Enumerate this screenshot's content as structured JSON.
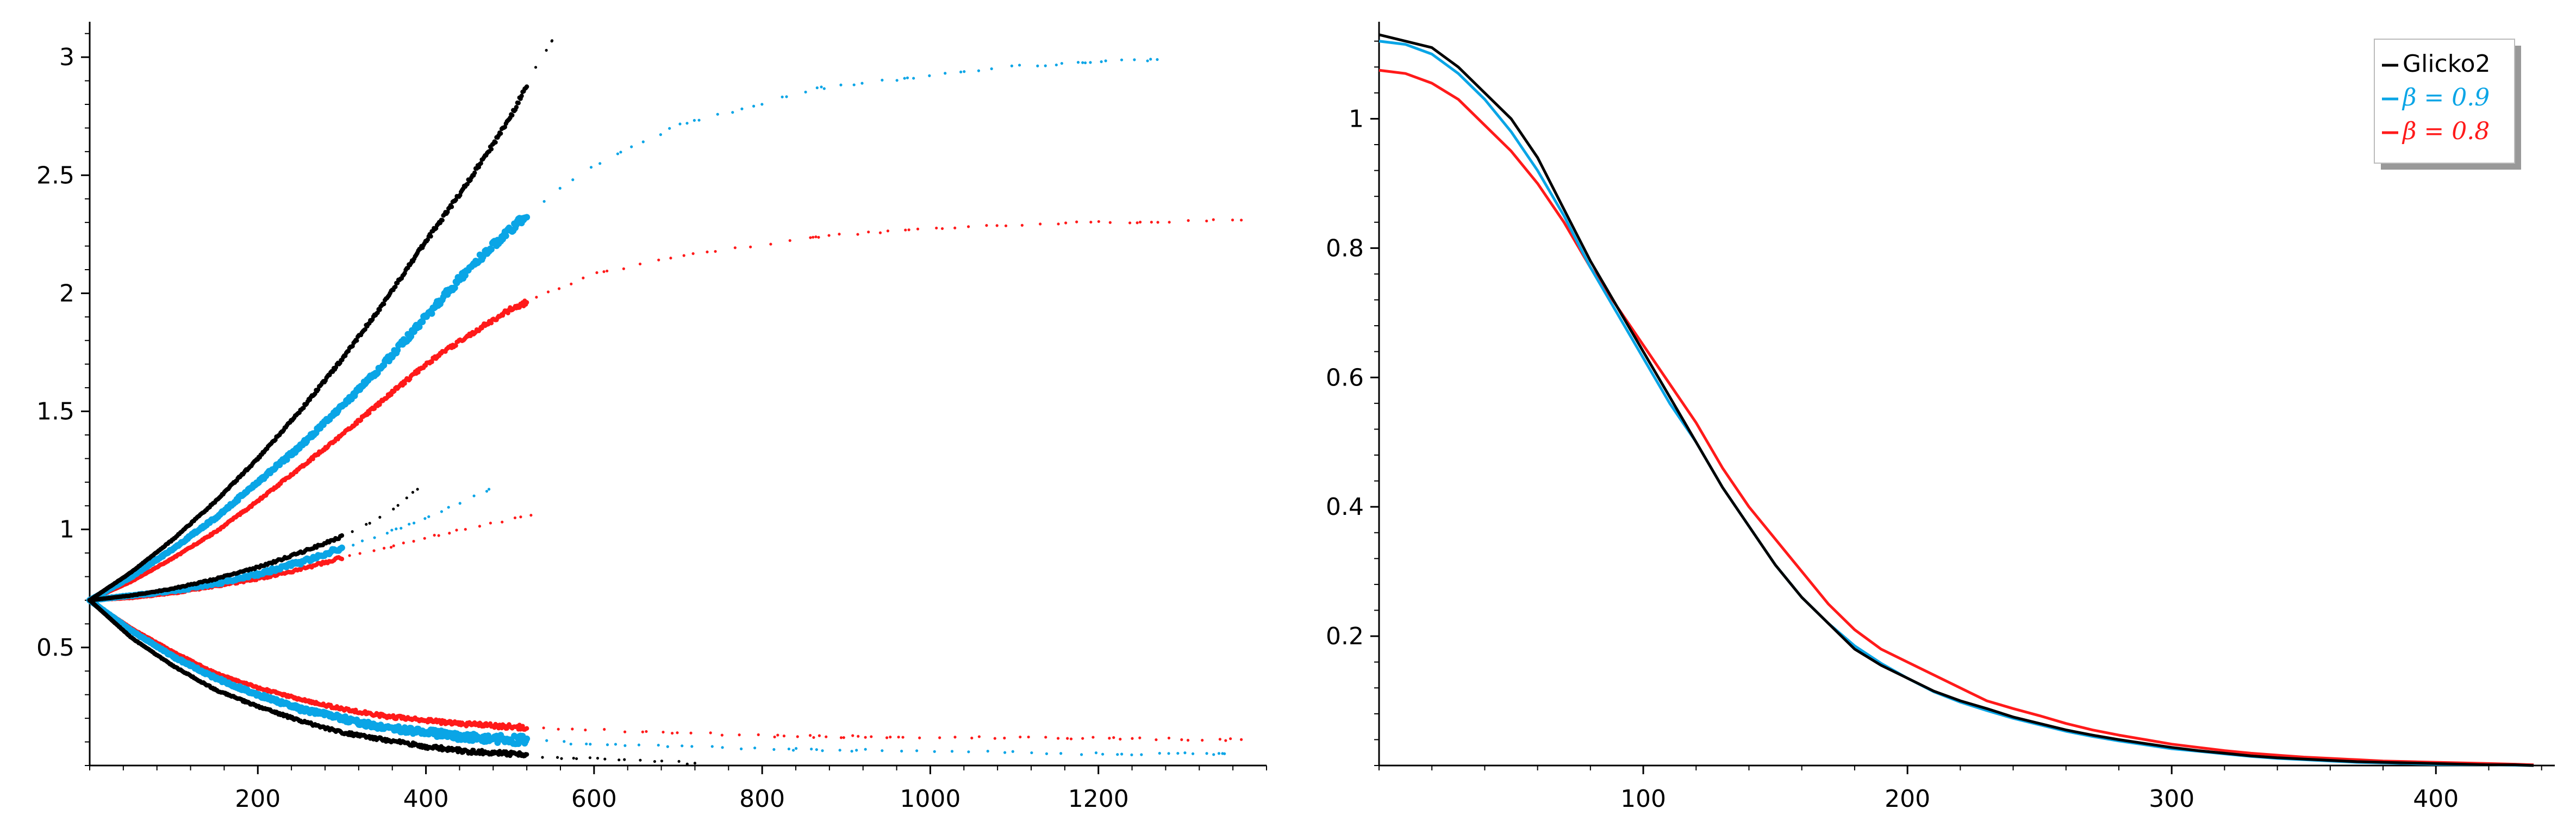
{
  "colors": {
    "black": "#000000",
    "blue": "#0aa5e6",
    "red": "#ff1a1a"
  },
  "chart_data": [
    {
      "type": "scatter",
      "xlim": [
        0,
        1400
      ],
      "ylim": [
        0.0,
        3.15
      ],
      "xticks": [
        200,
        400,
        600,
        800,
        1000,
        1200
      ],
      "xtick_labels": [
        "200",
        "400",
        "600",
        "800",
        "1000",
        "1200"
      ],
      "yticks": [
        0.5,
        1,
        1.5,
        2,
        2.5,
        3
      ],
      "ytick_labels": [
        "0.5",
        "1",
        "1.5",
        "2",
        "2.5",
        "3"
      ],
      "grid": false,
      "series": [
        {
          "color": "black",
          "group": "upper",
          "points": [
            [
              0,
              0.7
            ],
            [
              50,
              0.82
            ],
            [
              100,
              0.96
            ],
            [
              150,
              1.12
            ],
            [
              200,
              1.3
            ],
            [
              250,
              1.5
            ],
            [
              300,
              1.72
            ],
            [
              350,
              1.96
            ],
            [
              400,
              2.22
            ],
            [
              450,
              2.47
            ],
            [
              500,
              2.74
            ],
            [
              530,
              2.95
            ],
            [
              550,
              3.07
            ]
          ]
        },
        {
          "color": "blue",
          "group": "upper",
          "points": [
            [
              0,
              0.7
            ],
            [
              50,
              0.8
            ],
            [
              100,
              0.92
            ],
            [
              150,
              1.05
            ],
            [
              200,
              1.2
            ],
            [
              250,
              1.35
            ],
            [
              300,
              1.52
            ],
            [
              350,
              1.7
            ],
            [
              400,
              1.9
            ],
            [
              450,
              2.1
            ],
            [
              500,
              2.27
            ],
            [
              550,
              2.42
            ],
            [
              600,
              2.54
            ],
            [
              650,
              2.63
            ],
            [
              700,
              2.71
            ],
            [
              870,
              2.87
            ],
            [
              1000,
              2.92
            ],
            [
              1100,
              2.96
            ],
            [
              1200,
              2.98
            ],
            [
              1270,
              2.99
            ]
          ]
        },
        {
          "color": "red",
          "group": "upper",
          "points": [
            [
              0,
              0.7
            ],
            [
              50,
              0.78
            ],
            [
              100,
              0.88
            ],
            [
              150,
              0.99
            ],
            [
              200,
              1.12
            ],
            [
              250,
              1.26
            ],
            [
              300,
              1.4
            ],
            [
              350,
              1.55
            ],
            [
              400,
              1.7
            ],
            [
              450,
              1.82
            ],
            [
              500,
              1.93
            ],
            [
              550,
              2.01
            ],
            [
              600,
              2.08
            ],
            [
              650,
              2.12
            ],
            [
              690,
              2.15
            ],
            [
              890,
              2.25
            ],
            [
              1000,
              2.27
            ],
            [
              1100,
              2.29
            ],
            [
              1200,
              2.3
            ],
            [
              1370,
              2.31
            ]
          ]
        },
        {
          "color": "black",
          "group": "middle",
          "points": [
            [
              0,
              0.7
            ],
            [
              50,
              0.72
            ],
            [
              100,
              0.75
            ],
            [
              150,
              0.79
            ],
            [
              200,
              0.84
            ],
            [
              250,
              0.9
            ],
            [
              300,
              0.97
            ],
            [
              350,
              1.06
            ],
            [
              390,
              1.17
            ]
          ]
        },
        {
          "color": "blue",
          "group": "middle",
          "points": [
            [
              0,
              0.7
            ],
            [
              50,
              0.72
            ],
            [
              100,
              0.74
            ],
            [
              150,
              0.77
            ],
            [
              200,
              0.81
            ],
            [
              250,
              0.86
            ],
            [
              300,
              0.92
            ],
            [
              350,
              0.98
            ],
            [
              400,
              1.05
            ],
            [
              420,
              1.08
            ],
            [
              475,
              1.17
            ]
          ]
        },
        {
          "color": "red",
          "group": "middle",
          "points": [
            [
              0,
              0.7
            ],
            [
              50,
              0.71
            ],
            [
              100,
              0.73
            ],
            [
              150,
              0.76
            ],
            [
              200,
              0.79
            ],
            [
              250,
              0.83
            ],
            [
              300,
              0.88
            ],
            [
              350,
              0.92
            ],
            [
              385,
              0.95
            ],
            [
              440,
              1.0
            ],
            [
              525,
              1.06
            ]
          ]
        },
        {
          "color": "black",
          "group": "lower",
          "points": [
            [
              0,
              0.7
            ],
            [
              50,
              0.54
            ],
            [
              100,
              0.42
            ],
            [
              150,
              0.32
            ],
            [
              200,
              0.25
            ],
            [
              250,
              0.19
            ],
            [
              300,
              0.14
            ],
            [
              350,
              0.11
            ],
            [
              400,
              0.08
            ],
            [
              450,
              0.06
            ],
            [
              500,
              0.05
            ],
            [
              550,
              0.035
            ],
            [
              600,
              0.03
            ],
            [
              650,
              0.02
            ],
            [
              720,
              0.01
            ]
          ]
        },
        {
          "color": "blue",
          "group": "lower",
          "points": [
            [
              0,
              0.7
            ],
            [
              50,
              0.57
            ],
            [
              100,
              0.46
            ],
            [
              150,
              0.37
            ],
            [
              200,
              0.3
            ],
            [
              250,
              0.24
            ],
            [
              300,
              0.2
            ],
            [
              350,
              0.16
            ],
            [
              400,
              0.14
            ],
            [
              450,
              0.12
            ],
            [
              500,
              0.11
            ],
            [
              600,
              0.09
            ],
            [
              700,
              0.08
            ],
            [
              800,
              0.07
            ],
            [
              1000,
              0.06
            ],
            [
              1200,
              0.05
            ],
            [
              1350,
              0.05
            ]
          ]
        },
        {
          "color": "red",
          "group": "lower",
          "points": [
            [
              0,
              0.7
            ],
            [
              50,
              0.58
            ],
            [
              100,
              0.48
            ],
            [
              150,
              0.39
            ],
            [
              200,
              0.33
            ],
            [
              250,
              0.28
            ],
            [
              300,
              0.24
            ],
            [
              350,
              0.21
            ],
            [
              400,
              0.19
            ],
            [
              450,
              0.175
            ],
            [
              500,
              0.165
            ],
            [
              600,
              0.15
            ],
            [
              700,
              0.14
            ],
            [
              800,
              0.125
            ],
            [
              1000,
              0.12
            ],
            [
              1200,
              0.115
            ],
            [
              1370,
              0.11
            ]
          ]
        }
      ]
    },
    {
      "type": "line",
      "xlim": [
        0,
        445
      ],
      "ylim": [
        0.0,
        1.15
      ],
      "xticks": [
        100,
        200,
        300,
        400
      ],
      "xtick_labels": [
        "100",
        "200",
        "300",
        "400"
      ],
      "yticks": [
        0.2,
        0.4,
        0.6,
        0.8,
        1
      ],
      "ytick_labels": [
        "0.2",
        "0.4",
        "0.6",
        "0.8",
        "1"
      ],
      "grid": false,
      "legend_position": "top-right",
      "legend": [
        {
          "label": "Glicko2",
          "color": "black",
          "math": false
        },
        {
          "label": "β = 0.9",
          "color": "blue",
          "math": true
        },
        {
          "label": "β = 0.8",
          "color": "red",
          "math": true
        }
      ],
      "series": [
        {
          "name": "Glicko2",
          "color": "black",
          "x": [
            0,
            10,
            20,
            30,
            40,
            50,
            60,
            70,
            80,
            90,
            100,
            110,
            120,
            130,
            140,
            150,
            160,
            170,
            180,
            190,
            200,
            210,
            220,
            230,
            240,
            250,
            260,
            270,
            280,
            290,
            300,
            310,
            320,
            330,
            340,
            350,
            360,
            370,
            380,
            390,
            400,
            410,
            420,
            430,
            437
          ],
          "y": [
            1.13,
            1.12,
            1.11,
            1.08,
            1.04,
            1.0,
            0.94,
            0.86,
            0.78,
            0.71,
            0.64,
            0.57,
            0.5,
            0.43,
            0.37,
            0.31,
            0.26,
            0.22,
            0.18,
            0.155,
            0.135,
            0.115,
            0.1,
            0.088,
            0.075,
            0.065,
            0.055,
            0.047,
            0.04,
            0.034,
            0.028,
            0.023,
            0.019,
            0.015,
            0.012,
            0.01,
            0.008,
            0.006,
            0.005,
            0.004,
            0.003,
            0.002,
            0.001,
            0.001,
            0.0
          ]
        },
        {
          "name": "β = 0.9",
          "color": "blue",
          "x": [
            0,
            10,
            20,
            30,
            40,
            50,
            60,
            70,
            80,
            90,
            100,
            110,
            120,
            130,
            140,
            150,
            160,
            170,
            180,
            190,
            200,
            210,
            220,
            230,
            240,
            250,
            260,
            270,
            280,
            290,
            300,
            310,
            320,
            330,
            340,
            350,
            360,
            370,
            380,
            390,
            400,
            410,
            420,
            430,
            437
          ],
          "y": [
            1.12,
            1.115,
            1.1,
            1.07,
            1.03,
            0.98,
            0.92,
            0.85,
            0.77,
            0.7,
            0.63,
            0.56,
            0.5,
            0.43,
            0.37,
            0.31,
            0.26,
            0.22,
            0.185,
            0.158,
            0.135,
            0.114,
            0.098,
            0.085,
            0.073,
            0.063,
            0.053,
            0.045,
            0.038,
            0.032,
            0.026,
            0.022,
            0.018,
            0.014,
            0.011,
            0.009,
            0.007,
            0.005,
            0.004,
            0.003,
            0.002,
            0.0015,
            0.001,
            0.0005,
            0.0
          ]
        },
        {
          "name": "β = 0.8",
          "color": "red",
          "x": [
            0,
            10,
            20,
            30,
            40,
            50,
            60,
            70,
            80,
            90,
            100,
            110,
            120,
            130,
            140,
            150,
            160,
            170,
            180,
            190,
            200,
            210,
            220,
            230,
            240,
            250,
            260,
            270,
            280,
            290,
            300,
            310,
            320,
            330,
            340,
            350,
            360,
            370,
            380,
            390,
            400,
            410,
            420,
            430,
            437
          ],
          "y": [
            1.075,
            1.07,
            1.055,
            1.03,
            0.99,
            0.95,
            0.9,
            0.84,
            0.77,
            0.71,
            0.65,
            0.59,
            0.53,
            0.46,
            0.4,
            0.35,
            0.3,
            0.25,
            0.21,
            0.18,
            0.16,
            0.14,
            0.12,
            0.1,
            0.088,
            0.077,
            0.065,
            0.055,
            0.047,
            0.04,
            0.033,
            0.028,
            0.023,
            0.019,
            0.016,
            0.013,
            0.011,
            0.009,
            0.007,
            0.006,
            0.005,
            0.004,
            0.003,
            0.002,
            0.001
          ]
        }
      ]
    }
  ]
}
